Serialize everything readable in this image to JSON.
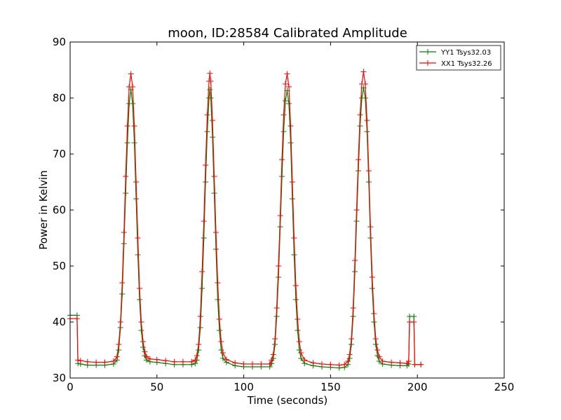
{
  "chart_data": {
    "type": "line",
    "title": "moon, ID:28584 Calibrated Amplitude",
    "xlabel": "Time (seconds)",
    "ylabel": "Power in Kelvin",
    "xlim": [
      0,
      250
    ],
    "ylim": [
      30,
      90
    ],
    "xticks": [
      "0",
      "50",
      "100",
      "150",
      "200",
      "250"
    ],
    "yticks": [
      "30",
      "40",
      "50",
      "60",
      "70",
      "80",
      "90"
    ],
    "grid": false,
    "legend_position": "top-right",
    "marker": "+",
    "series": [
      {
        "name": "YY1 Tsys32.03",
        "color": "#008000",
        "points": [
          [
            0,
            41.2
          ],
          [
            4,
            41.2
          ],
          [
            4.5,
            32.6
          ],
          [
            6,
            32.5
          ],
          [
            10,
            32.3
          ],
          [
            15,
            32.3
          ],
          [
            20,
            32.3
          ],
          [
            25,
            32.5
          ],
          [
            27,
            33.2
          ],
          [
            28,
            35
          ],
          [
            29,
            39
          ],
          [
            30,
            45
          ],
          [
            31,
            54
          ],
          [
            32,
            63
          ],
          [
            33,
            72
          ],
          [
            34,
            79
          ],
          [
            35,
            81.5
          ],
          [
            36,
            79
          ],
          [
            37,
            72
          ],
          [
            38,
            62
          ],
          [
            39,
            52
          ],
          [
            40,
            44
          ],
          [
            41,
            38.5
          ],
          [
            42,
            35.5
          ],
          [
            43,
            34
          ],
          [
            44,
            33.2
          ],
          [
            46,
            32.9
          ],
          [
            50,
            32.8
          ],
          [
            55,
            32.6
          ],
          [
            60,
            32.4
          ],
          [
            65,
            32.4
          ],
          [
            70,
            32.4
          ],
          [
            72,
            32.6
          ],
          [
            73,
            33.2
          ],
          [
            74,
            35
          ],
          [
            75,
            39
          ],
          [
            76,
            46
          ],
          [
            77,
            55
          ],
          [
            78,
            65
          ],
          [
            79,
            74
          ],
          [
            80,
            80
          ],
          [
            80.5,
            81.5
          ],
          [
            81,
            80
          ],
          [
            82,
            73
          ],
          [
            83,
            63
          ],
          [
            84,
            53
          ],
          [
            85,
            44
          ],
          [
            86,
            38.5
          ],
          [
            87,
            35
          ],
          [
            88,
            33.5
          ],
          [
            90,
            32.8
          ],
          [
            95,
            32.2
          ],
          [
            100,
            32
          ],
          [
            105,
            32
          ],
          [
            110,
            32
          ],
          [
            115,
            32
          ],
          [
            116,
            32.6
          ],
          [
            117,
            33.5
          ],
          [
            118,
            36
          ],
          [
            119,
            41
          ],
          [
            120,
            48
          ],
          [
            121,
            57
          ],
          [
            122,
            66
          ],
          [
            123,
            74
          ],
          [
            124,
            79.5
          ],
          [
            125,
            81.3
          ],
          [
            126,
            79
          ],
          [
            127,
            72
          ],
          [
            128,
            62
          ],
          [
            129,
            52
          ],
          [
            130,
            44
          ],
          [
            131,
            38.5
          ],
          [
            132,
            35
          ],
          [
            133,
            33.5
          ],
          [
            135,
            32.6
          ],
          [
            140,
            32.2
          ],
          [
            145,
            32
          ],
          [
            150,
            31.9
          ],
          [
            155,
            31.8
          ],
          [
            158,
            31.9
          ],
          [
            160,
            32.4
          ],
          [
            161,
            33.5
          ],
          [
            162,
            36
          ],
          [
            163,
            41
          ],
          [
            164,
            49
          ],
          [
            165,
            58
          ],
          [
            166,
            67
          ],
          [
            167,
            75
          ],
          [
            168,
            80
          ],
          [
            169,
            81.8
          ],
          [
            170,
            80
          ],
          [
            171,
            74
          ],
          [
            172,
            65
          ],
          [
            173,
            55
          ],
          [
            174,
            46
          ],
          [
            175,
            40
          ],
          [
            176,
            36
          ],
          [
            177,
            34
          ],
          [
            178,
            33
          ],
          [
            180,
            32.5
          ],
          [
            185,
            32.3
          ],
          [
            190,
            32.2
          ],
          [
            194,
            32.2
          ],
          [
            195,
            32.5
          ],
          [
            195.5,
            41
          ],
          [
            198,
            41
          ],
          [
            198.5,
            32.4
          ],
          [
            202,
            32.4
          ]
        ]
      },
      {
        "name": "XX1 Tsys32.26",
        "color": "#ff0000",
        "points": [
          [
            0,
            40.6
          ],
          [
            4,
            40.6
          ],
          [
            4.5,
            33.2
          ],
          [
            6,
            33.1
          ],
          [
            10,
            32.9
          ],
          [
            15,
            32.8
          ],
          [
            20,
            32.8
          ],
          [
            25,
            33
          ],
          [
            27,
            33.8
          ],
          [
            28,
            36
          ],
          [
            29,
            40
          ],
          [
            30,
            47
          ],
          [
            31,
            56
          ],
          [
            32,
            66
          ],
          [
            33,
            75
          ],
          [
            34,
            82
          ],
          [
            35,
            84.3
          ],
          [
            36,
            82
          ],
          [
            37,
            75
          ],
          [
            38,
            65
          ],
          [
            39,
            55
          ],
          [
            40,
            46
          ],
          [
            41,
            40
          ],
          [
            42,
            36.5
          ],
          [
            43,
            34.7
          ],
          [
            44,
            33.8
          ],
          [
            46,
            33.4
          ],
          [
            50,
            33.3
          ],
          [
            55,
            33.1
          ],
          [
            60,
            32.9
          ],
          [
            65,
            32.9
          ],
          [
            70,
            32.9
          ],
          [
            72,
            33.2
          ],
          [
            73,
            34
          ],
          [
            74,
            36
          ],
          [
            75,
            41
          ],
          [
            76,
            49
          ],
          [
            77,
            58
          ],
          [
            78,
            68
          ],
          [
            79,
            77
          ],
          [
            80,
            83
          ],
          [
            80.5,
            84.4
          ],
          [
            81,
            83
          ],
          [
            82,
            76
          ],
          [
            83,
            66
          ],
          [
            84,
            56
          ],
          [
            85,
            47
          ],
          [
            86,
            40.5
          ],
          [
            87,
            36.5
          ],
          [
            88,
            34.5
          ],
          [
            90,
            33.3
          ],
          [
            95,
            32.7
          ],
          [
            100,
            32.5
          ],
          [
            105,
            32.5
          ],
          [
            110,
            32.5
          ],
          [
            115,
            32.5
          ],
          [
            116,
            33.2
          ],
          [
            117,
            34.2
          ],
          [
            118,
            37
          ],
          [
            119,
            42.5
          ],
          [
            120,
            50
          ],
          [
            121,
            59
          ],
          [
            122,
            69
          ],
          [
            123,
            77
          ],
          [
            124,
            82.5
          ],
          [
            125,
            84.3
          ],
          [
            126,
            82
          ],
          [
            127,
            75
          ],
          [
            128,
            65
          ],
          [
            129,
            55
          ],
          [
            130,
            46.5
          ],
          [
            131,
            40.5
          ],
          [
            132,
            36.5
          ],
          [
            133,
            34.5
          ],
          [
            135,
            33.2
          ],
          [
            140,
            32.7
          ],
          [
            145,
            32.5
          ],
          [
            150,
            32.4
          ],
          [
            155,
            32.3
          ],
          [
            158,
            32.4
          ],
          [
            160,
            33
          ],
          [
            161,
            34.2
          ],
          [
            162,
            37
          ],
          [
            163,
            42.5
          ],
          [
            164,
            51
          ],
          [
            165,
            60
          ],
          [
            166,
            69
          ],
          [
            167,
            77
          ],
          [
            168,
            82.5
          ],
          [
            169,
            84.7
          ],
          [
            170,
            82.5
          ],
          [
            171,
            76
          ],
          [
            172,
            67
          ],
          [
            173,
            57
          ],
          [
            174,
            48
          ],
          [
            175,
            41.5
          ],
          [
            176,
            37
          ],
          [
            177,
            35
          ],
          [
            178,
            33.8
          ],
          [
            180,
            33
          ],
          [
            185,
            32.8
          ],
          [
            190,
            32.7
          ],
          [
            194,
            32.6
          ],
          [
            195,
            33
          ],
          [
            195.5,
            40
          ],
          [
            198,
            40
          ],
          [
            198.5,
            32.4
          ],
          [
            202,
            32.4
          ]
        ]
      }
    ]
  }
}
